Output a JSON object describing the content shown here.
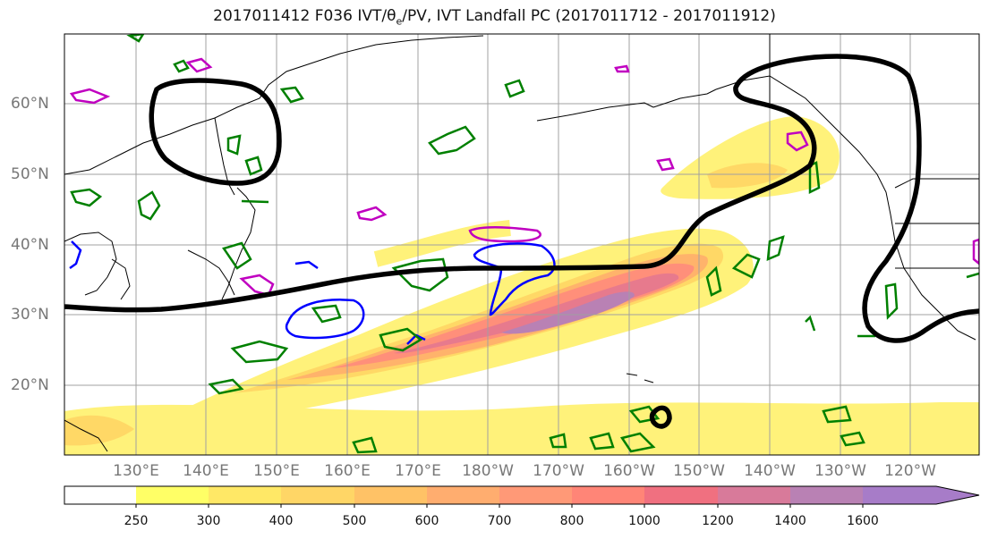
{
  "title": {
    "prefix": "2017011412 F036 IVT/θ",
    "sub": "e",
    "suffix": "/PV, IVT Landfall PC (2017011712 - 2017011912)"
  },
  "map": {
    "lon_labels": [
      "130°E",
      "140°E",
      "150°E",
      "160°E",
      "170°E",
      "180°W",
      "170°W",
      "160°W",
      "150°W",
      "140°W",
      "130°W",
      "120°W"
    ],
    "lat_labels": [
      "60°N",
      "50°N",
      "40°N",
      "30°N",
      "20°N"
    ],
    "colors": {
      "land_outline": "#000000",
      "grid": "#a0a0a0",
      "pv_contour": "#008000",
      "theta_e_magenta": "#c000c0",
      "theta_e_blue": "#0000ff",
      "landfall_contour": "#000000"
    }
  },
  "colorbar": {
    "levels": [
      250,
      300,
      400,
      500,
      600,
      700,
      800,
      1000,
      1200,
      1400,
      1600
    ],
    "tick_labels": [
      "250",
      "300",
      "400",
      "500",
      "600",
      "700",
      "800",
      "1000",
      "1200",
      "1400",
      "1600"
    ],
    "colors": [
      "#ffffff",
      "#ffff66",
      "#ffe866",
      "#ffd666",
      "#ffc266",
      "#ffad6f",
      "#ff9977",
      "#ff8577",
      "#f07080",
      "#d87a9a",
      "#b981b4",
      "#a77cc8"
    ],
    "extend": "max"
  }
}
